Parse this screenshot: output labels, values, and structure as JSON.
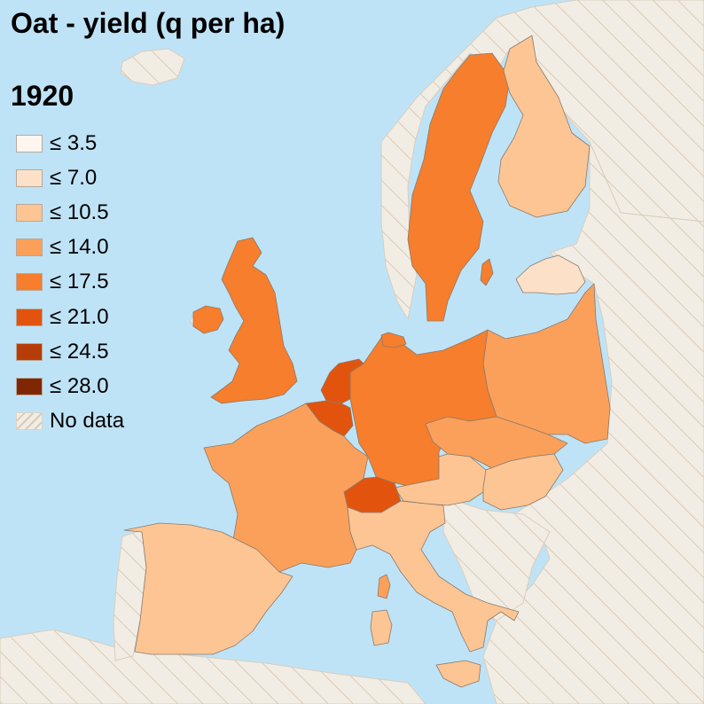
{
  "title": "Oat - yield (q per ha)",
  "year": "1920",
  "legend": [
    {
      "label": "≤ 3.5",
      "color": "#fef6ef"
    },
    {
      "label": "≤ 7.0",
      "color": "#fde0c8"
    },
    {
      "label": "≤ 10.5",
      "color": "#fdc594"
    },
    {
      "label": "≤ 14.0",
      "color": "#fba05b"
    },
    {
      "label": "≤ 17.5",
      "color": "#f67e2c"
    },
    {
      "label": "≤ 21.0",
      "color": "#e2540e"
    },
    {
      "label": "≤ 24.5",
      "color": "#b63d05"
    },
    {
      "label": "≤ 28.0",
      "color": "#7f2704"
    },
    {
      "label": "No data",
      "color": "hatched"
    }
  ],
  "colors": {
    "sea": "#bfe3f6",
    "no_data_land": "#f2ede4",
    "hatch": "#d9cbb8",
    "border": "#8a7a6c"
  },
  "countries": [
    {
      "name": "Norway",
      "bin": "No data"
    },
    {
      "name": "Sweden",
      "bin": "≤ 17.5"
    },
    {
      "name": "Finland",
      "bin": "≤ 10.5"
    },
    {
      "name": "Latvia",
      "bin": "≤ 7.0"
    },
    {
      "name": "Poland",
      "bin": "≤ 14.0"
    },
    {
      "name": "Germany",
      "bin": "≤ 17.5"
    },
    {
      "name": "Netherlands",
      "bin": "≤ 21.0"
    },
    {
      "name": "Belgium",
      "bin": "≤ 21.0"
    },
    {
      "name": "United Kingdom",
      "bin": "≤ 17.5"
    },
    {
      "name": "Ireland",
      "bin": "≤ 17.5"
    },
    {
      "name": "France",
      "bin": "≤ 14.0"
    },
    {
      "name": "Spain",
      "bin": "≤ 10.5"
    },
    {
      "name": "Portugal",
      "bin": "No data"
    },
    {
      "name": "Switzerland",
      "bin": "≤ 21.0"
    },
    {
      "name": "Italy",
      "bin": "≤ 10.5"
    },
    {
      "name": "Austria",
      "bin": "≤ 10.5"
    },
    {
      "name": "Czechoslovakia",
      "bin": "≤ 14.0"
    },
    {
      "name": "Hungary",
      "bin": "≤ 10.5"
    },
    {
      "name": "Denmark",
      "bin": "≤ 17.5"
    }
  ]
}
